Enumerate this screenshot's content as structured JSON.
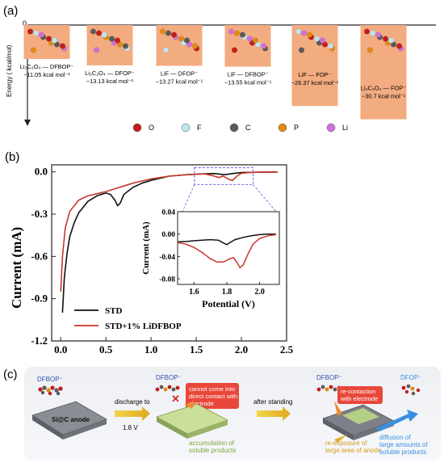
{
  "panel_a": {
    "label": "(a)",
    "zero": "0",
    "ylabel": "Energy ( kcal/mol)",
    "bars": [
      {
        "name_html": "Li2C2O4 — DFBOP⁻",
        "name": "Li₂C₂O₄ — DFBOP⁻",
        "energy": -11.05,
        "value": "−11.05 kcal mol⁻¹"
      },
      {
        "name": "Li₂C₂O₄ — DFOP⁻",
        "energy": -13.13,
        "value": "−13.13 kcal mol⁻¹"
      },
      {
        "name": "LiF — DFOP⁻",
        "energy": -13.27,
        "value": "−13.27 kcal mol⁻¹"
      },
      {
        "name": "LiF — DFBOP⁻",
        "energy": -13.55,
        "value": "−13.55 kcal mol⁻¹"
      },
      {
        "name": "LiF — FOP⁻",
        "energy": -26.37,
        "value": "−26.37 kcal mol⁻¹"
      },
      {
        "name": "Li₂C₂O₄ — FOP⁻",
        "energy": -30.7,
        "value": "−30.7 kcal mol⁻¹"
      }
    ],
    "legend": [
      {
        "symbol": "O",
        "color": "#c0201c"
      },
      {
        "symbol": "F",
        "color": "#bfe6ee"
      },
      {
        "symbol": "C",
        "color": "#5a5a5a"
      },
      {
        "symbol": "P",
        "color": "#e08a12"
      },
      {
        "symbol": "Li",
        "color": "#d070d8"
      }
    ]
  },
  "panel_b": {
    "label": "(b)",
    "chart_data": {
      "type": "line",
      "xlabel": "",
      "ylabel": "Current (mA)",
      "xlim": [
        -0.1,
        2.5
      ],
      "ylim": [
        -1.2,
        0.05
      ],
      "xticks": [
        "0.0",
        "0.5",
        "1.0",
        "1.5",
        "2.0",
        "2.5"
      ],
      "yticks": [
        "0.0",
        "-0.3",
        "-0.6",
        "-0.9",
        "-1.2"
      ],
      "series": [
        {
          "name": "STD",
          "color": "#111111",
          "x": [
            0.02,
            0.04,
            0.07,
            0.1,
            0.15,
            0.2,
            0.3,
            0.4,
            0.5,
            0.55,
            0.6,
            0.63,
            0.66,
            0.7,
            0.8,
            0.9,
            1.0,
            1.2,
            1.4,
            1.6,
            1.7,
            1.75,
            1.8,
            1.85,
            1.9,
            2.0,
            2.2,
            2.4
          ],
          "y": [
            -1.0,
            -0.75,
            -0.58,
            -0.46,
            -0.36,
            -0.29,
            -0.21,
            -0.17,
            -0.15,
            -0.16,
            -0.2,
            -0.24,
            -0.22,
            -0.16,
            -0.11,
            -0.08,
            -0.06,
            -0.03,
            -0.02,
            -0.013,
            -0.012,
            -0.015,
            -0.02,
            -0.017,
            -0.012,
            -0.005,
            -0.002,
            -0.001
          ]
        },
        {
          "name": "STD+1% LiDFBOP",
          "color": "#c8382a",
          "x": [
            0.0,
            0.02,
            0.05,
            0.1,
            0.2,
            0.3,
            0.4,
            0.5,
            0.6,
            0.7,
            0.8,
            1.0,
            1.2,
            1.4,
            1.6,
            1.7,
            1.75,
            1.8,
            1.85,
            1.9,
            1.95,
            2.0,
            2.1,
            2.2,
            2.4
          ],
          "y": [
            -0.85,
            -0.6,
            -0.4,
            -0.28,
            -0.2,
            -0.17,
            -0.155,
            -0.14,
            -0.12,
            -0.1,
            -0.08,
            -0.05,
            -0.03,
            -0.02,
            -0.015,
            -0.03,
            -0.04,
            -0.03,
            -0.05,
            -0.062,
            -0.03,
            -0.01,
            -0.004,
            -0.002,
            -0.001
          ]
        }
      ],
      "inset": {
        "xlabel": "Potential (V)",
        "ylabel": "Current (mA)",
        "xlim": [
          1.5,
          2.12
        ],
        "ylim": [
          -0.09,
          0.04
        ],
        "xticks": [
          "1.6",
          "1.8",
          "2.0"
        ],
        "yticks": [
          "0.04",
          "0.00",
          "-0.04",
          "-0.08"
        ],
        "series": [
          {
            "name": "STD",
            "color": "#111111",
            "x": [
              1.5,
              1.56,
              1.6,
              1.65,
              1.7,
              1.75,
              1.78,
              1.8,
              1.82,
              1.85,
              1.9,
              1.95,
              2.0,
              2.05,
              2.1
            ],
            "y": [
              -0.014,
              -0.013,
              -0.012,
              -0.011,
              -0.01,
              -0.011,
              -0.016,
              -0.019,
              -0.015,
              -0.01,
              -0.006,
              -0.003,
              -0.001,
              0.0,
              0.0
            ]
          },
          {
            "name": "STD+1% LiDFBOP",
            "color": "#c8382a",
            "x": [
              1.5,
              1.55,
              1.6,
              1.65,
              1.7,
              1.74,
              1.78,
              1.82,
              1.84,
              1.86,
              1.88,
              1.9,
              1.93,
              1.96,
              2.0,
              2.05,
              2.1
            ],
            "y": [
              -0.015,
              -0.018,
              -0.024,
              -0.033,
              -0.044,
              -0.05,
              -0.05,
              -0.044,
              -0.042,
              -0.05,
              -0.06,
              -0.055,
              -0.035,
              -0.018,
              -0.008,
              -0.003,
              -0.001
            ]
          }
        ]
      }
    }
  },
  "panel_c": {
    "label": "(c)",
    "dfbop": "DFBOP⁻",
    "anode": "Si@C  anode",
    "discharge": "discharge to",
    "discharge_v": "1.8 V",
    "no_contact": [
      "cannot come into",
      "direct contact with",
      "electrode"
    ],
    "accumulation": [
      "accumulation of",
      "soluble products"
    ],
    "after_standing": "after standing",
    "recontact": [
      "re-contaction",
      "with electrode"
    ],
    "reexposure": [
      "re-exposure of",
      "large area of anode"
    ],
    "dfop": "DFOP⁻",
    "diffusion": [
      "diffusion of",
      "large amounts of",
      "soluble products"
    ]
  }
}
